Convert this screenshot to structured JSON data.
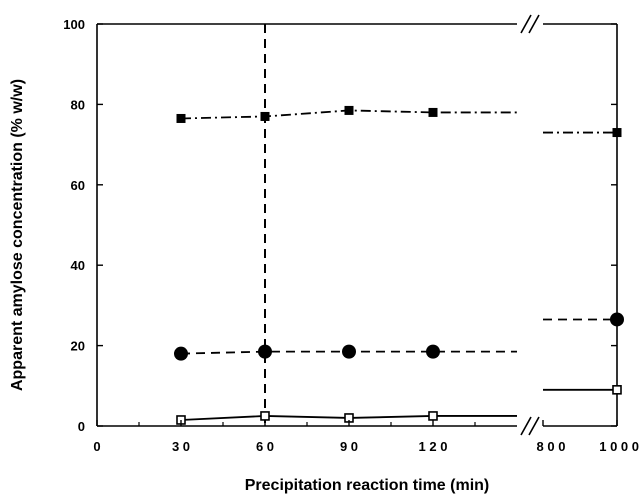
{
  "chart_data": {
    "type": "line",
    "title": "",
    "xlabel": "Precipitation reaction time (min)",
    "ylabel": "Apparent amylose concentration (% w/w)",
    "ylim": [
      0,
      100
    ],
    "y_ticks": [
      0,
      20,
      40,
      60,
      80,
      100
    ],
    "x_axis": {
      "broken": true,
      "break_between": [
        120,
        800
      ],
      "segment1_range": [
        0,
        150
      ],
      "segment2_range": [
        800,
        1000
      ],
      "tick_labels": [
        {
          "value": 0,
          "label": "0"
        },
        {
          "value": 30,
          "label": "3 0"
        },
        {
          "value": 60,
          "label": "6 0"
        },
        {
          "value": 90,
          "label": "9 0"
        },
        {
          "value": 120,
          "label": "1 2 0"
        },
        {
          "value": 800,
          "label": "8 0 0"
        },
        {
          "value": 1000,
          "label": "1 0 0 0"
        }
      ]
    },
    "vertical_reference_line": {
      "x": 60,
      "style": "dashed"
    },
    "series": [
      {
        "marker": "filled-square",
        "line_style": "dash-dot",
        "x": [
          30,
          60,
          90,
          120,
          1000
        ],
        "values": [
          76.5,
          77,
          78.5,
          78,
          73
        ]
      },
      {
        "marker": "filled-circle",
        "line_style": "dashed",
        "x": [
          30,
          60,
          90,
          120,
          1000
        ],
        "values": [
          18,
          18.5,
          18.5,
          18.5,
          26.5
        ]
      },
      {
        "marker": "open-square",
        "line_style": "solid",
        "x": [
          30,
          60,
          90,
          120,
          1000
        ],
        "values": [
          1.5,
          2.5,
          2,
          2.5,
          9
        ]
      }
    ],
    "grid": false,
    "legend": "none"
  }
}
